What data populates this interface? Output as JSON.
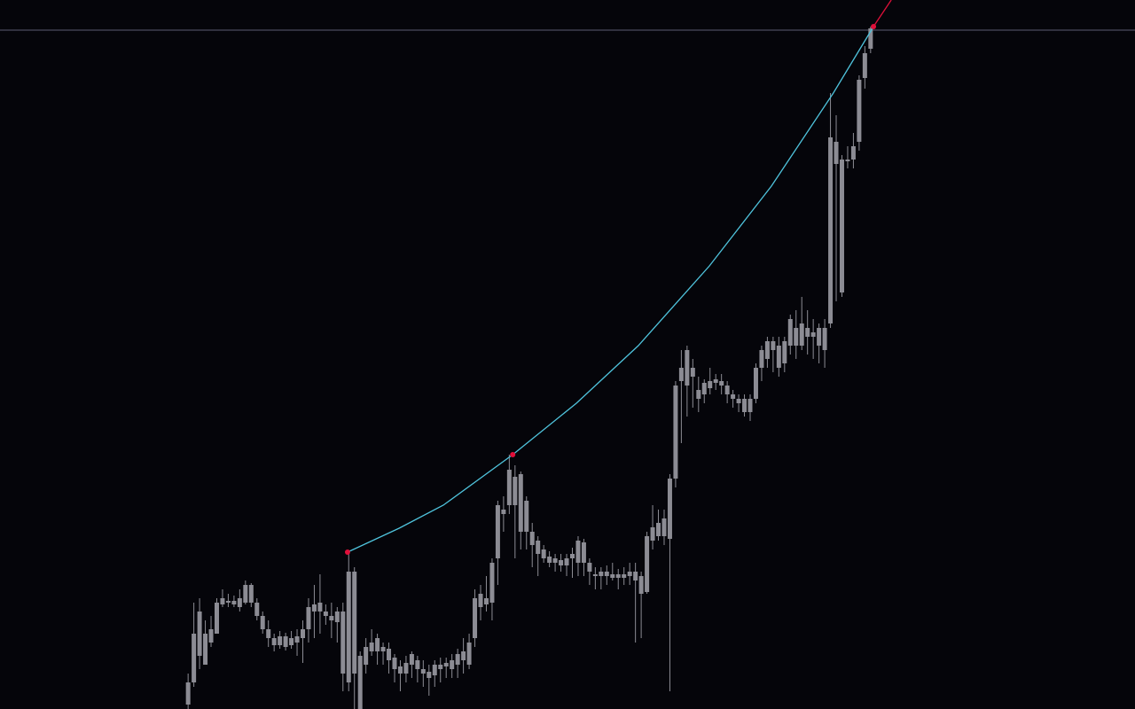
{
  "chart_data": {
    "type": "candlestick",
    "candle_color": "#8c8c94",
    "background": "#05050a",
    "xlim": [
      -32.8,
      165.1
    ],
    "ylim": [
      0,
      800
    ],
    "open": [
      5,
      30,
      60,
      50,
      75,
      85,
      118,
      120,
      118,
      115,
      120,
      140,
      120,
      105,
      90,
      80,
      72,
      70,
      72,
      75,
      80,
      90,
      110,
      110,
      110,
      100,
      98,
      40,
      30,
      155,
      60,
      50,
      65,
      80,
      65,
      68,
      58,
      48,
      40,
      50,
      55,
      45,
      42,
      38,
      45,
      48,
      45,
      50,
      55,
      50,
      80,
      115,
      118,
      120,
      170,
      220,
      230,
      262,
      265,
      235,
      200,
      190,
      180,
      172,
      165,
      168,
      162,
      170,
      165,
      188,
      165,
      152,
      150,
      155,
      148,
      152,
      148,
      150,
      155,
      130,
      132,
      190,
      195,
      195,
      192,
      260,
      370,
      365,
      385,
      360,
      355,
      362,
      368,
      370,
      365,
      355,
      350,
      350,
      335,
      350,
      385,
      395,
      415,
      385,
      390,
      410,
      430,
      410,
      430,
      420,
      410,
      405,
      435,
      640,
      470,
      620,
      620,
      640,
      712,
      745
    ],
    "high": [
      40,
      120,
      125,
      100,
      105,
      125,
      135,
      130,
      128,
      135,
      145,
      142,
      125,
      110,
      100,
      85,
      88,
      86,
      88,
      90,
      100,
      125,
      140,
      152,
      118,
      120,
      115,
      120,
      177,
      160,
      65,
      80,
      90,
      85,
      75,
      75,
      62,
      55,
      60,
      65,
      60,
      55,
      50,
      55,
      58,
      58,
      62,
      68,
      80,
      85,
      135,
      140,
      150,
      170,
      235,
      240,
      287,
      275,
      268,
      240,
      210,
      195,
      185,
      178,
      175,
      175,
      175,
      182,
      195,
      192,
      170,
      160,
      160,
      162,
      165,
      158,
      160,
      165,
      165,
      155,
      200,
      230,
      225,
      225,
      265,
      370,
      405,
      410,
      395,
      375,
      372,
      385,
      378,
      378,
      370,
      360,
      355,
      355,
      355,
      390,
      410,
      420,
      420,
      420,
      420,
      445,
      450,
      465,
      450,
      440,
      435,
      440,
      695,
      670,
      625,
      635,
      650,
      715,
      748,
      770
    ],
    "low": [
      0,
      25,
      45,
      50,
      70,
      85,
      115,
      115,
      115,
      110,
      118,
      115,
      100,
      85,
      70,
      65,
      68,
      66,
      68,
      60,
      52,
      75,
      80,
      85,
      95,
      80,
      75,
      20,
      20,
      0,
      0,
      40,
      60,
      50,
      50,
      40,
      30,
      20,
      30,
      35,
      30,
      25,
      15,
      25,
      30,
      35,
      35,
      35,
      40,
      45,
      70,
      100,
      110,
      100,
      140,
      200,
      220,
      170,
      180,
      180,
      160,
      150,
      165,
      160,
      155,
      155,
      150,
      148,
      150,
      150,
      140,
      135,
      135,
      140,
      145,
      135,
      140,
      140,
      75,
      80,
      130,
      180,
      190,
      185,
      20,
      250,
      300,
      330,
      340,
      335,
      345,
      355,
      360,
      355,
      345,
      340,
      335,
      330,
      325,
      345,
      370,
      385,
      380,
      375,
      380,
      400,
      395,
      405,
      400,
      395,
      390,
      385,
      430,
      460,
      465,
      610,
      610,
      630,
      700,
      740
    ],
    "close": [
      30,
      85,
      110,
      85,
      90,
      120,
      125,
      122,
      122,
      125,
      140,
      120,
      105,
      90,
      80,
      72,
      82,
      82,
      80,
      82,
      90,
      115,
      118,
      120,
      105,
      105,
      110,
      110,
      155,
      40,
      0,
      70,
      75,
      65,
      70,
      55,
      45,
      40,
      52,
      62,
      45,
      40,
      35,
      50,
      50,
      52,
      55,
      62,
      65,
      75,
      125,
      130,
      125,
      165,
      230,
      225,
      270,
      230,
      200,
      200,
      185,
      175,
      170,
      165,
      170,
      162,
      170,
      175,
      190,
      165,
      155,
      150,
      155,
      150,
      152,
      148,
      152,
      155,
      145,
      150,
      195,
      205,
      210,
      215,
      260,
      365,
      385,
      405,
      375,
      350,
      368,
      370,
      372,
      365,
      355,
      350,
      345,
      335,
      350,
      385,
      405,
      415,
      405,
      410,
      415,
      440,
      410,
      435,
      420,
      425,
      430,
      430,
      645,
      615,
      620,
      618,
      635,
      710,
      740,
      768
    ],
    "level": {
      "value": 766,
      "color": "#5a5a72"
    },
    "curve": {
      "color": "#4fc3dc",
      "x": [
        27.8,
        36.8,
        44.5,
        56.6,
        67.7,
        78.5,
        90.9,
        101.7,
        112.5,
        119.5
      ],
      "values": [
        177,
        204,
        230,
        287,
        345,
        410,
        500,
        590,
        695,
        770
      ]
    },
    "extension": {
      "color": "#e0103a",
      "x": [
        119.5,
        122.6
      ],
      "values": [
        770,
        800
      ]
    },
    "pivots": {
      "color": "#e0103a",
      "x": [
        27.8,
        56.6,
        119.5
      ],
      "values": [
        177,
        287,
        770
      ]
    }
  }
}
